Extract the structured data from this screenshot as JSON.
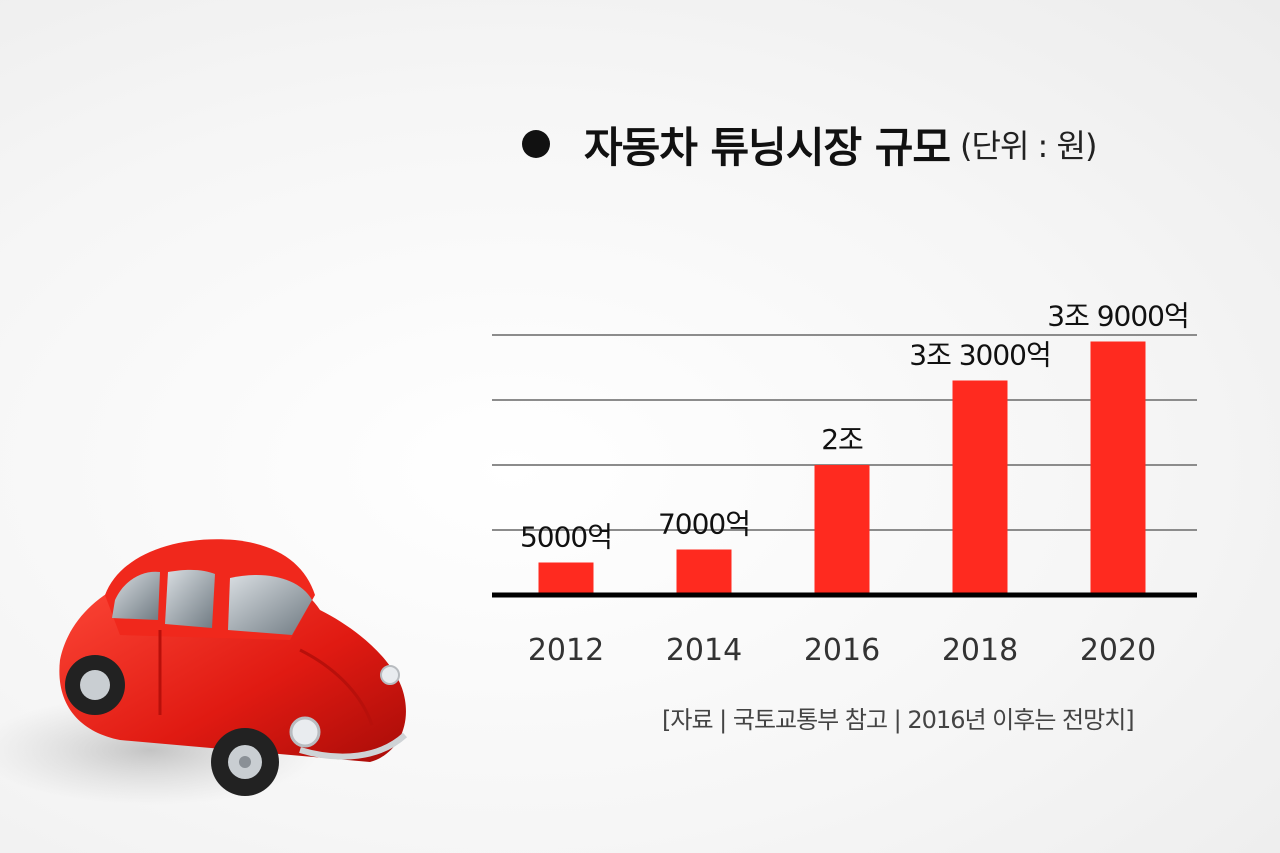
{
  "header": {
    "title": "자동차 튜닝시장 규모",
    "unit": "(단위 : 원)"
  },
  "chart_data": {
    "type": "bar",
    "title": "자동차 튜닝시장 규모",
    "unit_label": "(단위 : 원)",
    "categories": [
      "2012",
      "2014",
      "2016",
      "2018",
      "2020"
    ],
    "values": [
      5000,
      7000,
      20000,
      33000,
      39000
    ],
    "value_unit": "억 원",
    "data_labels": [
      "5000억",
      "7000억",
      "2조",
      "3조 3000억",
      "3조 9000억"
    ],
    "ylim": [
      0,
      40000
    ],
    "grid": true,
    "bar_color": "#ff2a1f"
  },
  "footer": {
    "source": "[자료 | 국토교통부 참고 | 2016년 이후는 전망치]"
  },
  "image": {
    "subject": "red-toy-car-icon"
  }
}
